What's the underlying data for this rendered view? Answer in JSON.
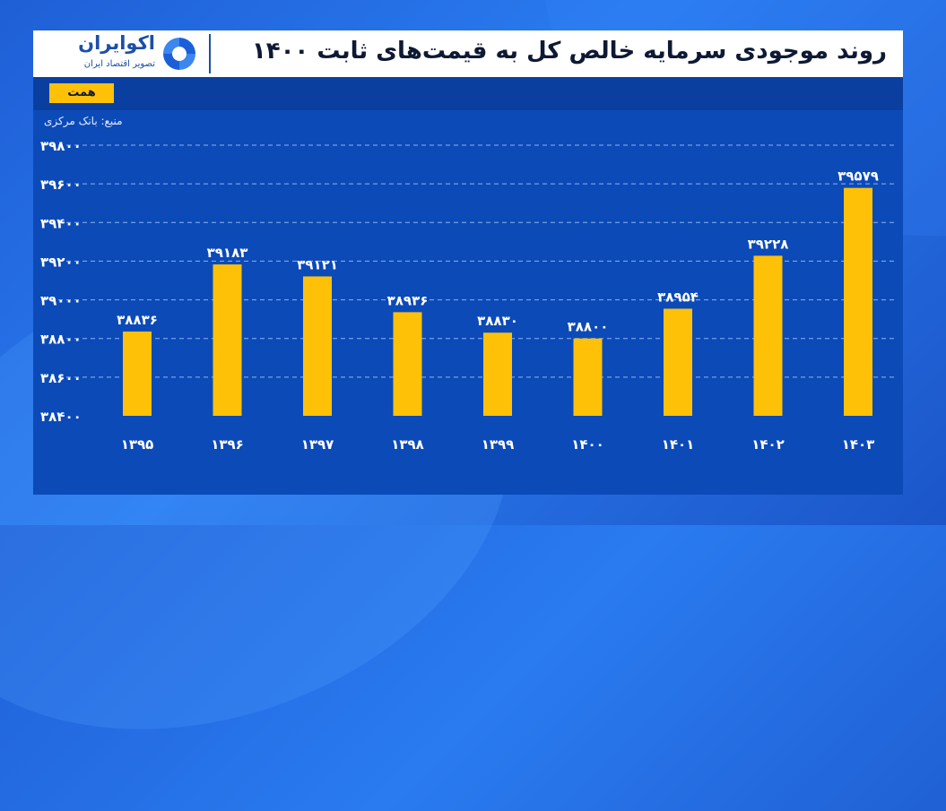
{
  "brand": {
    "name": "اکوایران",
    "subtitle": "تصویر اقتصاد ایران"
  },
  "title": "روند موجودی سرمایه خالص کل به قیمت‌های ثابت ۱۴۰۰",
  "tag": "همت",
  "source": "منبع: بانک مرکزی",
  "colors": {
    "bar": "#ffc107",
    "panel": "#0c4ab8",
    "gridline": "#8fb3ee"
  },
  "chart_data": {
    "type": "bar",
    "categories": [
      "۱۳۹۵",
      "۱۳۹۶",
      "۱۳۹۷",
      "۱۳۹۸",
      "۱۳۹۹",
      "۱۴۰۰",
      "۱۴۰۱",
      "۱۴۰۲",
      "۱۴۰۳"
    ],
    "values": [
      38836,
      39183,
      39121,
      38936,
      38830,
      38800,
      38954,
      39228,
      39579
    ],
    "value_labels": [
      "۳۸۸۳۶",
      "۳۹۱۸۳",
      "۳۹۱۲۱",
      "۳۸۹۳۶",
      "۳۸۸۳۰",
      "۳۸۸۰۰",
      "۳۸۹۵۴",
      "۳۹۲۲۸",
      "۳۹۵۷۹"
    ],
    "yticks": [
      38400,
      38600,
      38800,
      39000,
      39200,
      39400,
      39600,
      39800
    ],
    "ytick_labels": [
      "۳۸۴۰۰",
      "۳۸۶۰۰",
      "۳۸۸۰۰",
      "۳۹۰۰۰",
      "۳۹۲۰۰",
      "۳۹۴۰۰",
      "۳۹۶۰۰",
      "۳۹۸۰۰"
    ],
    "ylim": [
      38400,
      39800
    ],
    "grid": true
  }
}
